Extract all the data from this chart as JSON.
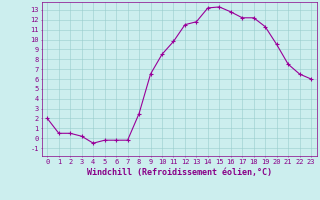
{
  "x": [
    0,
    1,
    2,
    3,
    4,
    5,
    6,
    7,
    8,
    9,
    10,
    11,
    12,
    13,
    14,
    15,
    16,
    17,
    18,
    19,
    20,
    21,
    22,
    23
  ],
  "y": [
    2,
    0.5,
    0.5,
    0.2,
    -0.5,
    -0.2,
    -0.2,
    -0.2,
    2.5,
    6.5,
    8.5,
    9.8,
    11.5,
    11.8,
    13.2,
    13.3,
    12.8,
    12.2,
    12.2,
    11.3,
    9.5,
    7.5,
    6.5,
    6.0
  ],
  "line_color": "#990099",
  "marker": "+",
  "markersize": 3,
  "markeredgewidth": 0.8,
  "linewidth": 0.8,
  "bg_color": "#cceeee",
  "grid_color": "#99cccc",
  "xlabel": "Windchill (Refroidissement éolien,°C)",
  "xlabel_fontsize": 6,
  "tick_fontsize": 5,
  "xtick_labels": [
    "0",
    "1",
    "2",
    "3",
    "4",
    "5",
    "6",
    "7",
    "8",
    "9",
    "10",
    "11",
    "12",
    "13",
    "14",
    "15",
    "16",
    "17",
    "18",
    "19",
    "20",
    "21",
    "22",
    "23"
  ],
  "ytick_vals": [
    -1,
    0,
    1,
    2,
    3,
    4,
    5,
    6,
    7,
    8,
    9,
    10,
    11,
    12,
    13
  ],
  "ytick_labels": [
    "-1",
    "0",
    "1",
    "2",
    "3",
    "4",
    "5",
    "6",
    "7",
    "8",
    "9",
    "10",
    "11",
    "12",
    "13"
  ],
  "ylim": [
    -1.8,
    13.8
  ],
  "xlim": [
    -0.5,
    23.5
  ],
  "tick_color": "#880088",
  "spine_color": "#880088"
}
